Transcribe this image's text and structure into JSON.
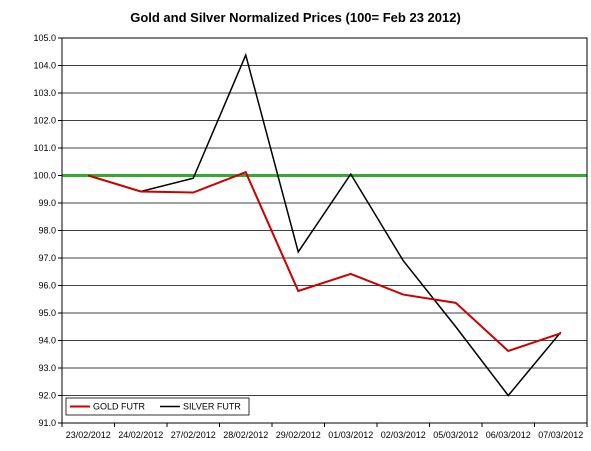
{
  "chart_data": {
    "type": "line",
    "title": "Gold and Silver Normalized Prices  (100= Feb 23 2012)",
    "xlabel": "",
    "ylabel": "",
    "categories": [
      "23/02/2012",
      "24/02/2012",
      "27/02/2012",
      "28/02/2012",
      "29/02/2012",
      "01/03/2012",
      "02/03/2012",
      "05/03/2012",
      "06/03/2012",
      "07/03/2012"
    ],
    "ylim": [
      91.0,
      105.0
    ],
    "yticks": [
      "91.0",
      "92.0",
      "93.0",
      "94.0",
      "95.0",
      "96.0",
      "97.0",
      "98.0",
      "99.0",
      "100.0",
      "101.0",
      "102.0",
      "103.0",
      "104.0",
      "105.0"
    ],
    "grid": true,
    "legend_position": "bottom-left",
    "reference_line": {
      "value": 100.0,
      "color": "#33AA33"
    },
    "series": [
      {
        "name": "GOLD  FUTR",
        "color": "#CC0000",
        "values": [
          100.0,
          99.42,
          99.38,
          100.12,
          95.8,
          96.42,
          95.67,
          95.37,
          93.62,
          94.26
        ]
      },
      {
        "name": "SILVER  FUTR",
        "color": "#000000",
        "values": [
          100.0,
          99.42,
          99.9,
          104.38,
          97.22,
          100.05,
          96.9,
          94.5,
          92.0,
          94.3
        ]
      }
    ]
  }
}
